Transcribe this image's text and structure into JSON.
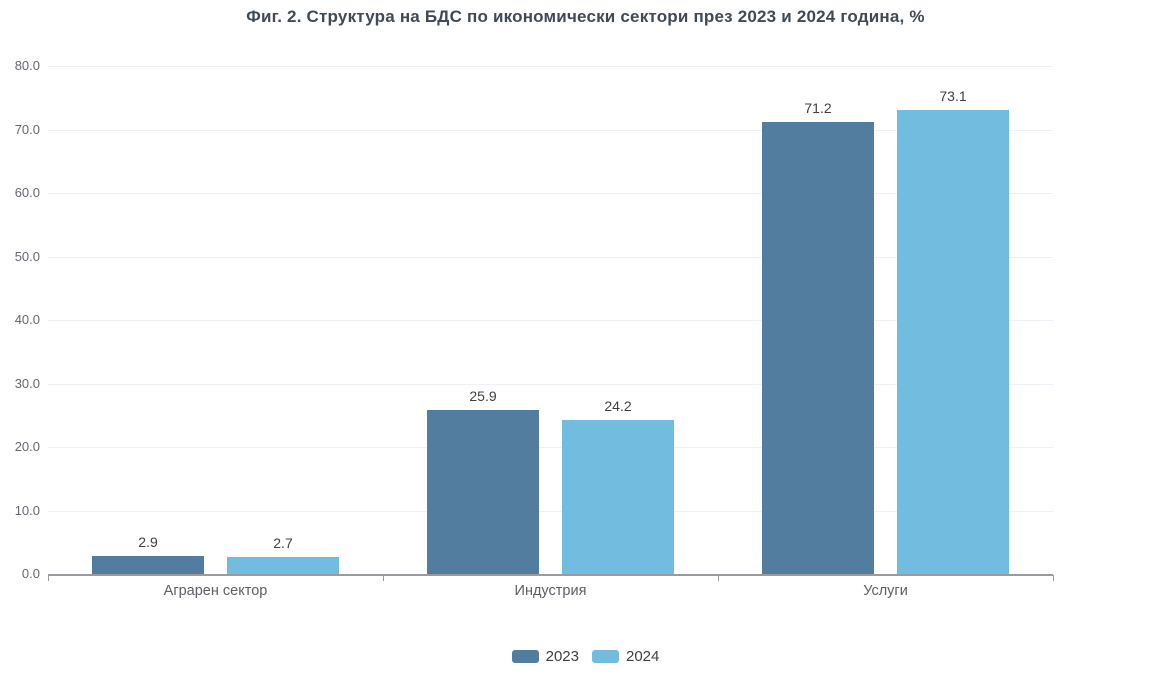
{
  "title": "Фиг. 2. Структура на БДС по икономически сектори през 2023 и 2024 година, %",
  "chart_data": {
    "type": "bar",
    "title": "Фиг. 2. Структура на БДС по икономически сектори през 2023 и 2024 година, %",
    "categories": [
      "Аграрен сектор",
      "Индустрия",
      "Услуги"
    ],
    "series": [
      {
        "name": "2023",
        "color": "#527d9f",
        "values": [
          2.9,
          25.9,
          71.2
        ]
      },
      {
        "name": "2024",
        "color": "#71bcdf",
        "values": [
          2.7,
          24.2,
          73.1
        ]
      }
    ],
    "xlabel": "",
    "ylabel": "",
    "ylim": [
      0,
      80
    ],
    "ytick_step": 10,
    "ytick_decimals": 1,
    "grid": true,
    "value_labels": true,
    "value_label_decimals": 1,
    "legend_position": "bottom"
  },
  "colors": {
    "title_text": "#3f4a55",
    "value_label_text": "#404040",
    "y_tick_label_text": "#63686f",
    "category_label_text": "#5b6066",
    "legend_label_text": "#404040",
    "gridline": "#edf1f7",
    "axis_line": "#9a9aa1",
    "background": "#ffffff"
  }
}
